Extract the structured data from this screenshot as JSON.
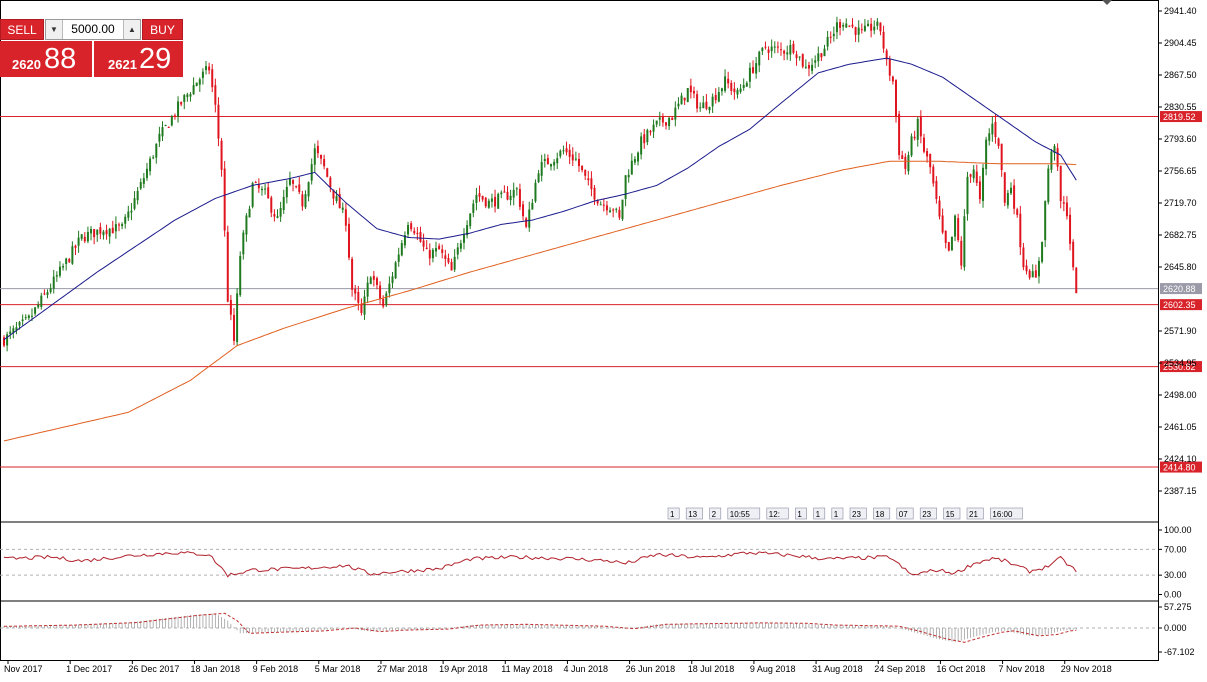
{
  "trade_panel": {
    "sell_label": "SELL",
    "buy_label": "BUY",
    "lot_value": "5000.00",
    "sell_price_prefix": "2620",
    "sell_price_main": "88",
    "buy_price_prefix": "2621",
    "buy_price_main": "29",
    "down_icon": "triangle-down-icon",
    "up_icon": "triangle-up-icon"
  },
  "colors": {
    "bull": "#1f7a1f",
    "bear": "#e0141e",
    "ma_fast": "#1a1a8c",
    "ma_slow": "#e06020",
    "hline": "#d8232a",
    "rsi": "#b0202a",
    "osc": "#c03030"
  },
  "events_strip": [
    "1",
    "13",
    "2",
    "10:55",
    "12:",
    "1",
    "1",
    "1",
    "23",
    "18",
    "07",
    "23",
    "15",
    "21",
    "16:00"
  ],
  "chart_data": [
    {
      "type": "candlestick",
      "symbol_panel": "price",
      "ylim": [
        2365,
        2948
      ],
      "y_ticks": [
        "2941.40",
        "2904.45",
        "2867.50",
        "2830.55",
        "2793.60",
        "2756.65",
        "2719.70",
        "2682.75",
        "2645.80",
        "2608.85",
        "2571.90",
        "2534.95",
        "2498.00",
        "2461.05",
        "2424.10",
        "2387.15"
      ],
      "x_ticks": [
        "Nov 2017",
        "1 Dec 2017",
        "26 Dec 2017",
        "18 Jan 2018",
        "9 Feb 2018",
        "5 Mar 2018",
        "27 Mar 2018",
        "19 Apr 2018",
        "11 May 2018",
        "4 Jun 2018",
        "26 Jun 2018",
        "18 Jul 2018",
        "9 Aug 2018",
        "31 Aug 2018",
        "24 Sep 2018",
        "16 Oct 2018",
        "7 Nov 2018",
        "29 Nov 2018"
      ],
      "x_tick_index": [
        0,
        20,
        40,
        60,
        80,
        100,
        120,
        140,
        160,
        180,
        200,
        220,
        240,
        260,
        280,
        300,
        320,
        340
      ],
      "horizontal_lines": [
        {
          "value": 2819.52,
          "label": "2819.52"
        },
        {
          "value": 2602.35,
          "label": "2602.35"
        },
        {
          "value": 2530.82,
          "label": "2530.82"
        },
        {
          "value": 2414.8,
          "label": "2414.80"
        }
      ],
      "current_price": {
        "value": 2620.88,
        "label": "2620.88"
      },
      "close_anchors": [
        [
          0,
          2562
        ],
        [
          8,
          2585
        ],
        [
          18,
          2640
        ],
        [
          25,
          2680
        ],
        [
          32,
          2690
        ],
        [
          38,
          2690
        ],
        [
          44,
          2740
        ],
        [
          50,
          2795
        ],
        [
          56,
          2830
        ],
        [
          62,
          2860
        ],
        [
          66,
          2875
        ],
        [
          68,
          2830
        ],
        [
          70,
          2760
        ],
        [
          72,
          2610
        ],
        [
          74,
          2560
        ],
        [
          76,
          2660
        ],
        [
          78,
          2700
        ],
        [
          80,
          2740
        ],
        [
          84,
          2730
        ],
        [
          88,
          2700
        ],
        [
          92,
          2745
        ],
        [
          96,
          2720
        ],
        [
          100,
          2780
        ],
        [
          103,
          2760
        ],
        [
          106,
          2730
        ],
        [
          110,
          2700
        ],
        [
          112,
          2620
        ],
        [
          115,
          2590
        ],
        [
          118,
          2640
        ],
        [
          122,
          2600
        ],
        [
          126,
          2650
        ],
        [
          130,
          2700
        ],
        [
          132,
          2690
        ],
        [
          136,
          2660
        ],
        [
          140,
          2665
        ],
        [
          144,
          2640
        ],
        [
          148,
          2690
        ],
        [
          152,
          2730
        ],
        [
          156,
          2720
        ],
        [
          160,
          2725
        ],
        [
          165,
          2735
        ],
        [
          168,
          2690
        ],
        [
          172,
          2760
        ],
        [
          176,
          2770
        ],
        [
          180,
          2780
        ],
        [
          184,
          2770
        ],
        [
          188,
          2740
        ],
        [
          192,
          2720
        ],
        [
          196,
          2715
        ],
        [
          198,
          2700
        ],
        [
          200,
          2750
        ],
        [
          205,
          2790
        ],
        [
          210,
          2810
        ],
        [
          215,
          2820
        ],
        [
          220,
          2850
        ],
        [
          224,
          2830
        ],
        [
          228,
          2840
        ],
        [
          232,
          2860
        ],
        [
          236,
          2845
        ],
        [
          240,
          2870
        ],
        [
          245,
          2900
        ],
        [
          250,
          2895
        ],
        [
          254,
          2900
        ],
        [
          258,
          2875
        ],
        [
          262,
          2890
        ],
        [
          266,
          2910
        ],
        [
          268,
          2925
        ],
        [
          270,
          2930
        ],
        [
          272,
          2925
        ],
        [
          276,
          2915
        ],
        [
          280,
          2925
        ],
        [
          282,
          2920
        ],
        [
          284,
          2880
        ],
        [
          286,
          2860
        ],
        [
          288,
          2780
        ],
        [
          290,
          2760
        ],
        [
          292,
          2790
        ],
        [
          294,
          2810
        ],
        [
          296,
          2780
        ],
        [
          298,
          2760
        ],
        [
          300,
          2720
        ],
        [
          302,
          2680
        ],
        [
          304,
          2660
        ],
        [
          306,
          2700
        ],
        [
          308,
          2650
        ],
        [
          310,
          2750
        ],
        [
          312,
          2760
        ],
        [
          314,
          2720
        ],
        [
          316,
          2790
        ],
        [
          318,
          2810
        ],
        [
          320,
          2790
        ],
        [
          322,
          2720
        ],
        [
          324,
          2740
        ],
        [
          326,
          2700
        ],
        [
          328,
          2650
        ],
        [
          330,
          2640
        ],
        [
          332,
          2630
        ],
        [
          334,
          2680
        ],
        [
          336,
          2760
        ],
        [
          338,
          2790
        ],
        [
          340,
          2720
        ],
        [
          342,
          2710
        ],
        [
          344,
          2640
        ],
        [
          345,
          2621
        ]
      ],
      "ma_fast_anchors": [
        [
          0,
          2562
        ],
        [
          30,
          2640
        ],
        [
          55,
          2700
        ],
        [
          68,
          2725
        ],
        [
          80,
          2740
        ],
        [
          92,
          2748
        ],
        [
          100,
          2755
        ],
        [
          110,
          2720
        ],
        [
          120,
          2690
        ],
        [
          130,
          2680
        ],
        [
          140,
          2678
        ],
        [
          150,
          2685
        ],
        [
          160,
          2695
        ],
        [
          170,
          2700
        ],
        [
          180,
          2710
        ],
        [
          190,
          2722
        ],
        [
          200,
          2730
        ],
        [
          210,
          2740
        ],
        [
          220,
          2760
        ],
        [
          230,
          2785
        ],
        [
          240,
          2805
        ],
        [
          250,
          2835
        ],
        [
          262,
          2870
        ],
        [
          272,
          2880
        ],
        [
          284,
          2887
        ],
        [
          292,
          2880
        ],
        [
          302,
          2865
        ],
        [
          312,
          2840
        ],
        [
          322,
          2815
        ],
        [
          332,
          2790
        ],
        [
          340,
          2775
        ],
        [
          345,
          2746
        ]
      ],
      "ma_slow_anchors": [
        [
          0,
          2445
        ],
        [
          40,
          2478
        ],
        [
          60,
          2515
        ],
        [
          75,
          2555
        ],
        [
          90,
          2575
        ],
        [
          110,
          2598
        ],
        [
          130,
          2618
        ],
        [
          150,
          2640
        ],
        [
          170,
          2660
        ],
        [
          190,
          2680
        ],
        [
          210,
          2700
        ],
        [
          230,
          2720
        ],
        [
          250,
          2740
        ],
        [
          270,
          2758
        ],
        [
          285,
          2768
        ],
        [
          300,
          2768
        ],
        [
          320,
          2765
        ],
        [
          340,
          2765
        ],
        [
          345,
          2764
        ]
      ]
    },
    {
      "type": "line",
      "symbol_panel": "rsi",
      "ylim": [
        0,
        100
      ],
      "y_ticks": [
        "100.00",
        "70.00",
        "30.00",
        "0.00"
      ],
      "levels": [
        70,
        30
      ],
      "anchors": [
        [
          0,
          55
        ],
        [
          15,
          58
        ],
        [
          25,
          52
        ],
        [
          40,
          60
        ],
        [
          55,
          65
        ],
        [
          66,
          62
        ],
        [
          72,
          30
        ],
        [
          80,
          38
        ],
        [
          95,
          40
        ],
        [
          110,
          45
        ],
        [
          118,
          32
        ],
        [
          125,
          35
        ],
        [
          140,
          40
        ],
        [
          150,
          55
        ],
        [
          165,
          58
        ],
        [
          180,
          56
        ],
        [
          195,
          52
        ],
        [
          200,
          48
        ],
        [
          210,
          62
        ],
        [
          225,
          57
        ],
        [
          240,
          65
        ],
        [
          255,
          60
        ],
        [
          265,
          55
        ],
        [
          285,
          58
        ],
        [
          292,
          30
        ],
        [
          300,
          38
        ],
        [
          306,
          33
        ],
        [
          312,
          48
        ],
        [
          318,
          56
        ],
        [
          322,
          52
        ],
        [
          330,
          36
        ],
        [
          335,
          42
        ],
        [
          340,
          56
        ],
        [
          345,
          36
        ]
      ]
    },
    {
      "type": "histogram",
      "symbol_panel": "oscillator",
      "ylim": [
        -67.102,
        57.275
      ],
      "y_ticks": [
        "57.275",
        "0.000",
        "-67.102"
      ],
      "anchors": [
        [
          0,
          5
        ],
        [
          20,
          8
        ],
        [
          40,
          15
        ],
        [
          60,
          35
        ],
        [
          68,
          40
        ],
        [
          72,
          20
        ],
        [
          76,
          -15
        ],
        [
          85,
          -12
        ],
        [
          100,
          -8
        ],
        [
          110,
          0
        ],
        [
          118,
          -10
        ],
        [
          126,
          -6
        ],
        [
          140,
          -3
        ],
        [
          150,
          8
        ],
        [
          165,
          10
        ],
        [
          175,
          8
        ],
        [
          190,
          5
        ],
        [
          200,
          -2
        ],
        [
          210,
          10
        ],
        [
          225,
          12
        ],
        [
          240,
          14
        ],
        [
          255,
          13
        ],
        [
          265,
          8
        ],
        [
          285,
          5
        ],
        [
          292,
          -10
        ],
        [
          300,
          -30
        ],
        [
          306,
          -40
        ],
        [
          312,
          -25
        ],
        [
          318,
          -12
        ],
        [
          322,
          -8
        ],
        [
          330,
          -22
        ],
        [
          336,
          -18
        ],
        [
          340,
          -8
        ],
        [
          345,
          -4
        ]
      ]
    }
  ]
}
